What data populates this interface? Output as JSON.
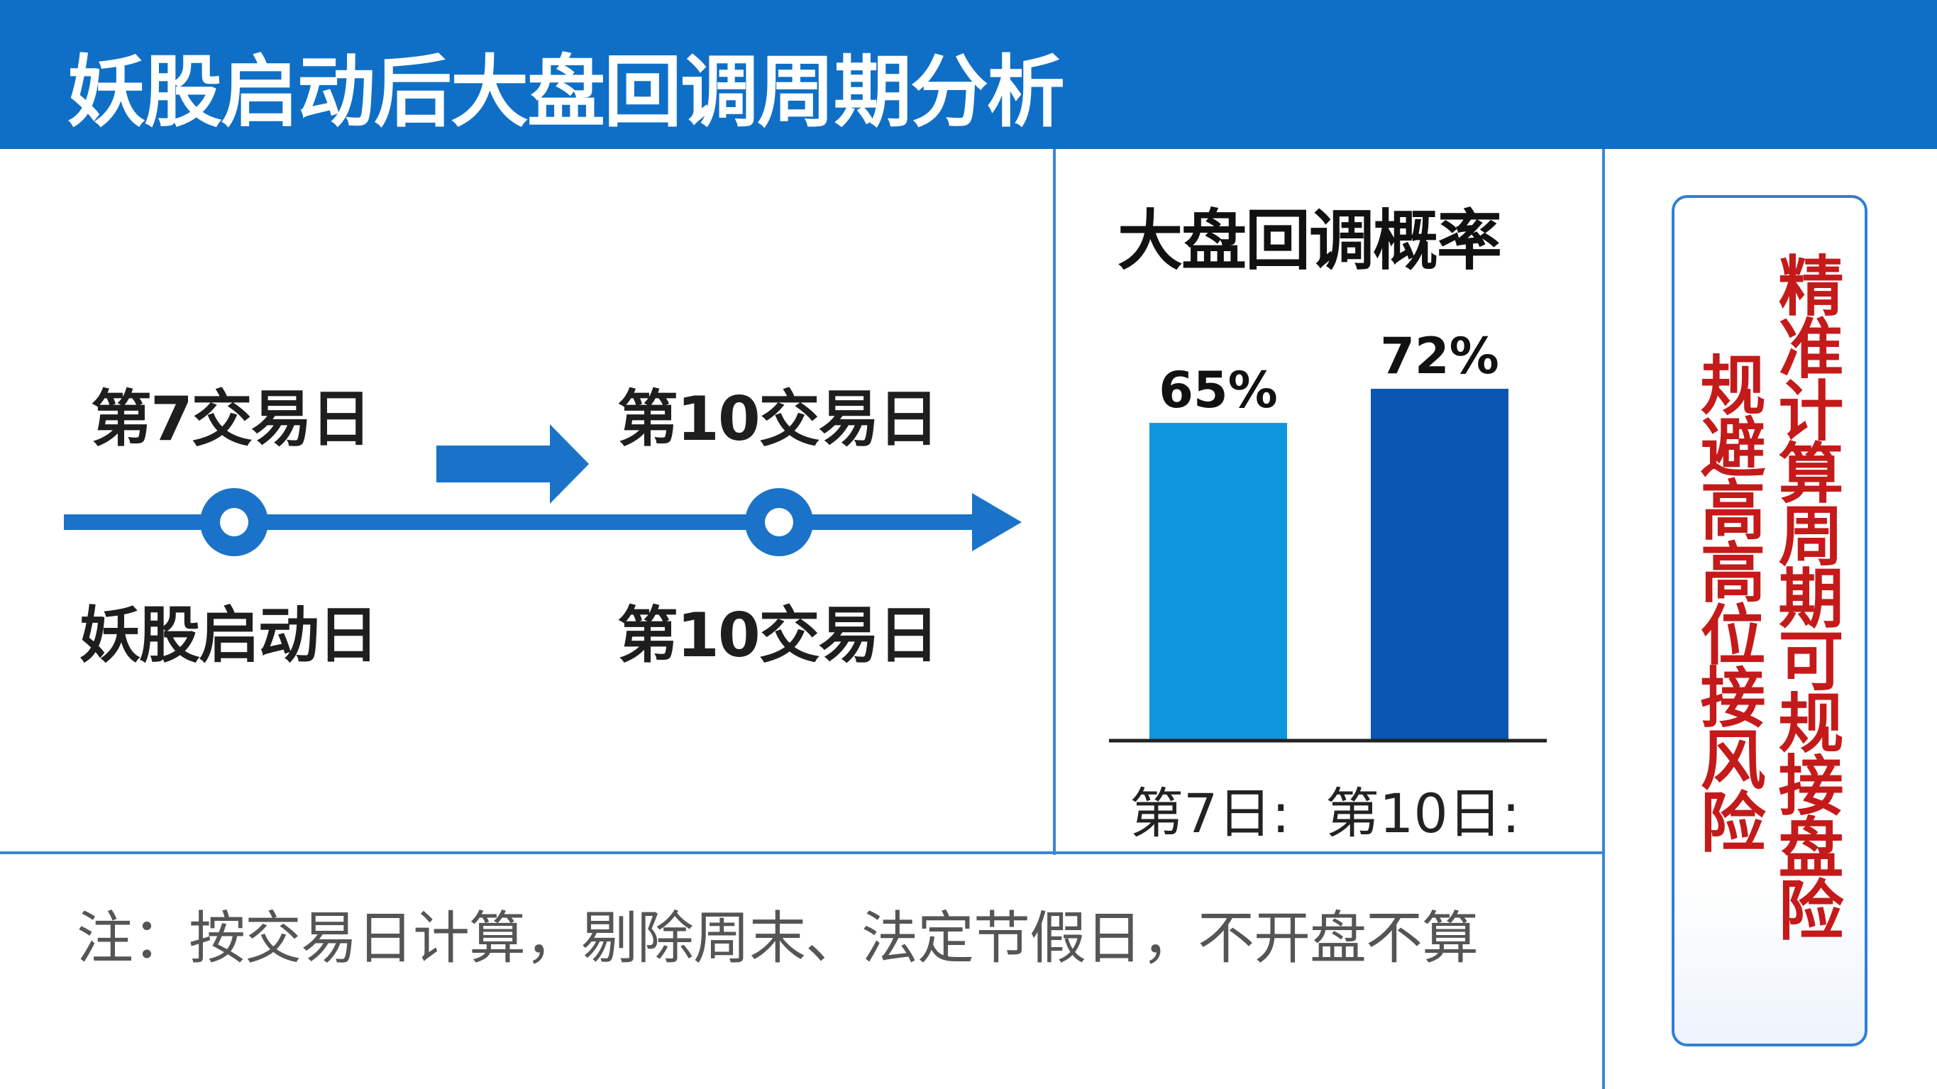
{
  "header": {
    "title": "妖股启动后大盘回调周期分析"
  },
  "timeline": {
    "top_left_label": "第7交易日",
    "top_right_label": "第10交易日",
    "bottom_left_label": "妖股启动日",
    "bottom_right_label": "第10交易日",
    "color": "#1a73c8"
  },
  "chart_data": {
    "type": "bar",
    "title": "大盘回调概率",
    "categories": [
      "第7日:",
      "第10日:"
    ],
    "values": [
      65,
      72
    ],
    "value_labels": [
      "65%",
      "72%"
    ],
    "ylim": [
      0,
      100
    ],
    "colors": [
      "#0f95dc",
      "#0a56b0"
    ],
    "grid": false,
    "legend": "none"
  },
  "note": {
    "text": "注：按交易日计算，剔除周末、法定节假日，不开盘不算"
  },
  "side_panel": {
    "line1": "精准计算周期可规接盘险",
    "line2": "规避高高位接风险",
    "color": "#c41a1a"
  }
}
